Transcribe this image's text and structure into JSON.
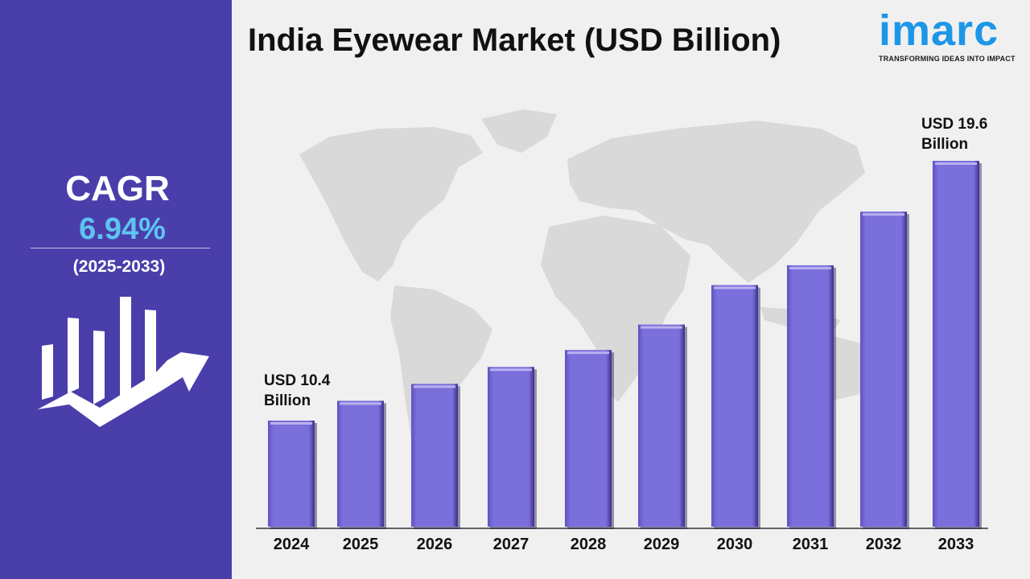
{
  "title": "India Eyewear Market (USD Billion)",
  "logo": {
    "name": "imarc",
    "tagline": "TRANSFORMING IDEAS INTO IMPACT"
  },
  "sidebar": {
    "cagr_label": "CAGR",
    "cagr_value": "6.94%",
    "period": "(2025-2033)"
  },
  "colors": {
    "sidebar": "#4a3eab",
    "bar": "#7b6fdc",
    "bar_top": "#b9b1ee",
    "accent_blue": "#5fc4f0",
    "map": "#d9d9d9"
  },
  "annotations": {
    "first": {
      "line1": "USD 10.4",
      "line2": "Billion"
    },
    "last": {
      "line1": "USD 19.6",
      "line2": "Billion"
    }
  },
  "chart_data": {
    "type": "bar",
    "title": "India Eyewear Market (USD Billion)",
    "categories": [
      "2024",
      "2025",
      "2026",
      "2027",
      "2028",
      "2029",
      "2030",
      "2031",
      "2032",
      "2033"
    ],
    "values": [
      10.4,
      11.1,
      11.7,
      12.3,
      12.9,
      13.8,
      15.2,
      15.9,
      17.8,
      19.6
    ],
    "value_labels": {
      "2024": "USD 10.4 Billion",
      "2033": "USD 19.6 Billion"
    },
    "xlabel": "",
    "ylabel": "",
    "grid": false
  }
}
